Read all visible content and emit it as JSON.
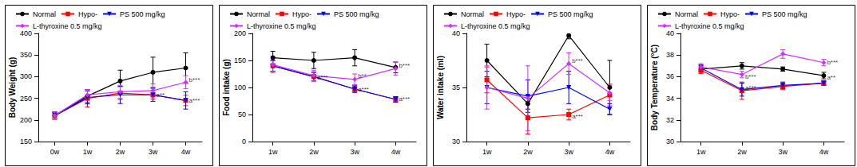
{
  "chart_data": [
    {
      "type": "line",
      "y_label": "Body Weight (g)",
      "categories": [
        "0w",
        "1w",
        "2w",
        "3w",
        "4w"
      ],
      "ylim": [
        150,
        400
      ],
      "yticks": [
        150,
        200,
        250,
        300,
        350,
        400
      ],
      "grid": false,
      "legend": "top left",
      "series": [
        {
          "name": "Normal",
          "color": "#000000",
          "marker": "circle",
          "values": [
            210,
            255,
            290,
            310,
            320
          ],
          "errors": [
            8,
            15,
            25,
            35,
            35
          ]
        },
        {
          "name": "Hypo-",
          "color": "#ff0000",
          "marker": "square",
          "values": [
            210,
            250,
            262,
            258,
            245
          ],
          "errors": [
            8,
            20,
            15,
            10,
            12
          ]
        },
        {
          "name": "PS 500 mg/kg",
          "color": "#0000ff",
          "marker": "triangle-down",
          "values": [
            210,
            252,
            258,
            258,
            245
          ],
          "errors": [
            8,
            15,
            20,
            15,
            20
          ]
        },
        {
          "name": "L-thyroxine 0.5 mg/kg",
          "color": "#cc33ff",
          "marker": "diamond",
          "values": [
            210,
            258,
            265,
            268,
            287
          ],
          "errors": [
            8,
            12,
            15,
            15,
            15
          ]
        }
      ],
      "annotations": [
        {
          "x": "3w",
          "y": 258,
          "text": "a**"
        },
        {
          "x": "4w",
          "y": 292,
          "text": "b***"
        },
        {
          "x": "4w",
          "y": 245,
          "text": "a***"
        }
      ]
    },
    {
      "type": "line",
      "y_label": "Food intake (g)",
      "categories": [
        "1w",
        "2w",
        "3w",
        "4w"
      ],
      "ylim": [
        0,
        200
      ],
      "yticks": [
        0,
        50,
        100,
        150,
        200
      ],
      "grid": false,
      "legend": "top left",
      "series": [
        {
          "name": "Normal",
          "color": "#000000",
          "marker": "circle",
          "values": [
            155,
            150,
            155,
            137
          ],
          "errors": [
            12,
            15,
            15,
            10
          ]
        },
        {
          "name": "Hypo-",
          "color": "#ff0000",
          "marker": "square",
          "values": [
            140,
            120,
            97,
            78
          ],
          "errors": [
            10,
            8,
            6,
            5
          ]
        },
        {
          "name": "PS 500 mg/kg",
          "color": "#0000ff",
          "marker": "triangle-down",
          "values": [
            140,
            120,
            97,
            78
          ],
          "errors": [
            10,
            8,
            6,
            5
          ]
        },
        {
          "name": "L-thyroxine 0.5 mg/kg",
          "color": "#cc33ff",
          "marker": "diamond",
          "values": [
            142,
            122,
            115,
            135
          ],
          "errors": [
            15,
            10,
            10,
            12
          ]
        }
      ],
      "annotations": [
        {
          "x": "2w",
          "y": 118,
          "text": "a***"
        },
        {
          "x": "3w",
          "y": 122,
          "text": "b**"
        },
        {
          "x": "3w",
          "y": 97,
          "text": "a***"
        },
        {
          "x": "4w",
          "y": 140,
          "text": "b***"
        },
        {
          "x": "4w",
          "y": 78,
          "text": "a***"
        }
      ]
    },
    {
      "type": "line",
      "y_label": "Water intake (ml)",
      "categories": [
        "1w",
        "2w",
        "3w",
        "4w"
      ],
      "ylim": [
        30,
        40
      ],
      "yticks": [
        30,
        35,
        40
      ],
      "grid": false,
      "legend": "top left",
      "series": [
        {
          "name": "Normal",
          "color": "#000000",
          "marker": "circle",
          "values": [
            37.5,
            33.5,
            39.8,
            35
          ],
          "errors": [
            1.5,
            0.5,
            0.3,
            2.5
          ]
        },
        {
          "name": "Hypo-",
          "color": "#ff0000",
          "marker": "square",
          "values": [
            35.7,
            32.2,
            32.5,
            34.3
          ],
          "errors": [
            1.2,
            1.5,
            0.5,
            1
          ]
        },
        {
          "name": "PS 500 mg/kg",
          "color": "#0000ff",
          "marker": "triangle-down",
          "values": [
            35,
            34.2,
            35,
            33
          ],
          "errors": [
            1.5,
            1.5,
            1.5,
            0.5
          ]
        },
        {
          "name": "L-thyroxine 0.5 mg/kg",
          "color": "#cc33ff",
          "marker": "diamond",
          "values": [
            35,
            34,
            37.2,
            34.5
          ],
          "errors": [
            2,
            3,
            1,
            0.7
          ]
        }
      ],
      "annotations": [
        {
          "x": "3w",
          "y": 37.5,
          "text": "b***"
        },
        {
          "x": "3w",
          "y": 32.3,
          "text": "a***"
        }
      ]
    },
    {
      "type": "line",
      "y_label": "Body Temperature (°C)",
      "categories": [
        "1w",
        "2w",
        "3w",
        "4w"
      ],
      "ylim": [
        30,
        40
      ],
      "yticks": [
        30,
        32,
        34,
        36,
        38,
        40
      ],
      "grid": false,
      "legend": "top left",
      "series": [
        {
          "name": "Normal",
          "color": "#000000",
          "marker": "circle",
          "values": [
            36.7,
            37.0,
            36.7,
            36.1
          ],
          "errors": [
            0.3,
            0.3,
            0.2,
            0.3
          ]
        },
        {
          "name": "Hypo-",
          "color": "#ff0000",
          "marker": "square",
          "values": [
            36.6,
            34.7,
            35.1,
            35.4
          ],
          "errors": [
            0.3,
            0.8,
            0.3,
            0.2
          ]
        },
        {
          "name": "PS 500 mg/kg",
          "color": "#0000ff",
          "marker": "triangle-down",
          "values": [
            36.8,
            34.8,
            35.2,
            35.4
          ],
          "errors": [
            0.3,
            0.6,
            0.3,
            0.2
          ]
        },
        {
          "name": "L-thyroxine 0.5 mg/kg",
          "color": "#cc33ff",
          "marker": "diamond",
          "values": [
            36.9,
            36.2,
            38.1,
            37.3
          ],
          "errors": [
            0.3,
            0.3,
            0.4,
            0.3
          ]
        }
      ],
      "annotations": [
        {
          "x": "2w",
          "y": 36.0,
          "text": "b***"
        },
        {
          "x": "2w",
          "y": 35.0,
          "text": "a***"
        },
        {
          "x": "4w",
          "y": 37.3,
          "text": "b***"
        },
        {
          "x": "4w",
          "y": 35.9,
          "text": "a**"
        }
      ]
    }
  ]
}
